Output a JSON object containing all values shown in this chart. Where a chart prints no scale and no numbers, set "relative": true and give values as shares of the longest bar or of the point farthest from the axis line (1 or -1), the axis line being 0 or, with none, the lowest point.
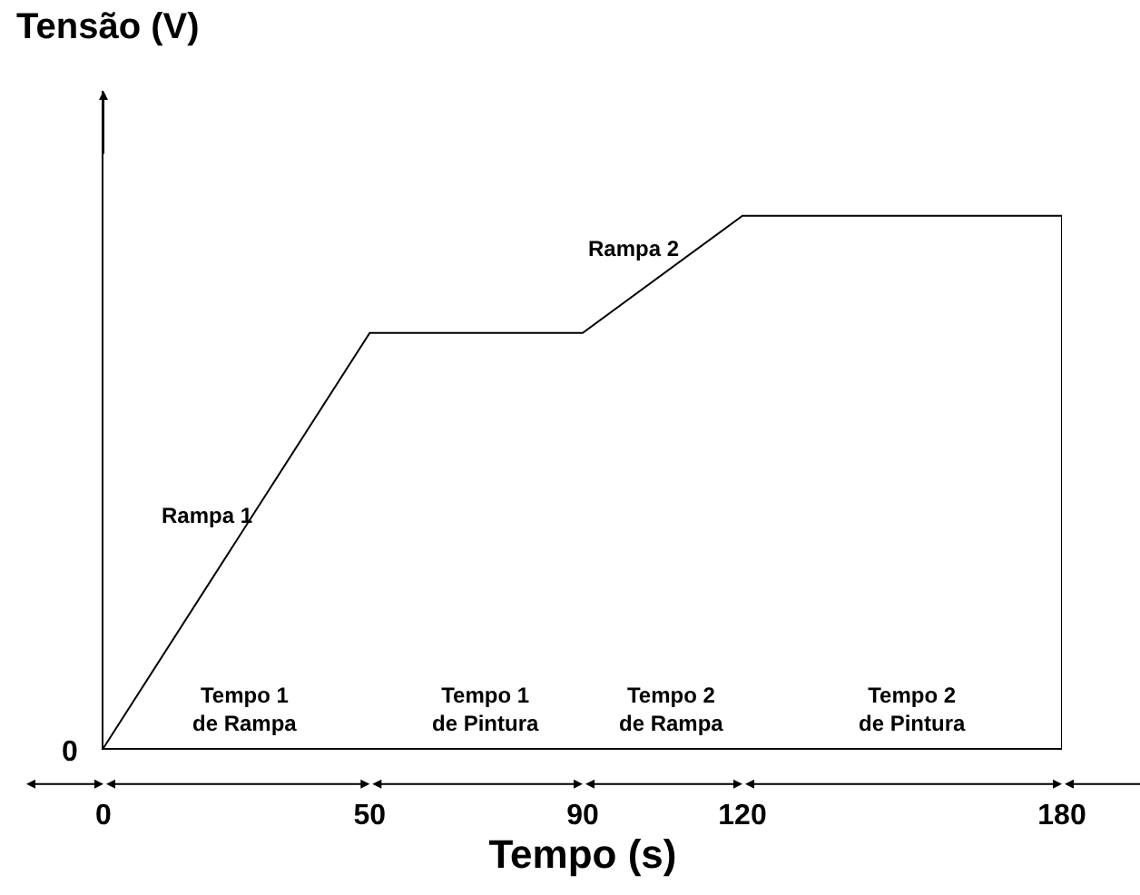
{
  "chart_data": {
    "type": "line",
    "relative": true,
    "xlabel": "Tempo (s)",
    "ylabel": "Tensão (V)",
    "x": [
      0,
      50,
      90,
      120,
      180,
      180
    ],
    "series": [
      {
        "color": "#000000",
        "values": [
          0,
          0.78,
          0.78,
          1,
          1,
          0
        ]
      }
    ],
    "xlim": [
      0,
      180
    ],
    "xticks": [
      0,
      50,
      90,
      120,
      180
    ],
    "marker": "none",
    "line_style": "solid",
    "annotations": [
      {
        "text": "0",
        "x": 0,
        "y": 0
      },
      "Rampa 1",
      "Rampa 2",
      "Tempo 1\nde Rampa",
      "Tempo 1\nde Pintura",
      "Tempo 2\nde Rampa",
      "Tempo 2\nde Pintura"
    ]
  }
}
